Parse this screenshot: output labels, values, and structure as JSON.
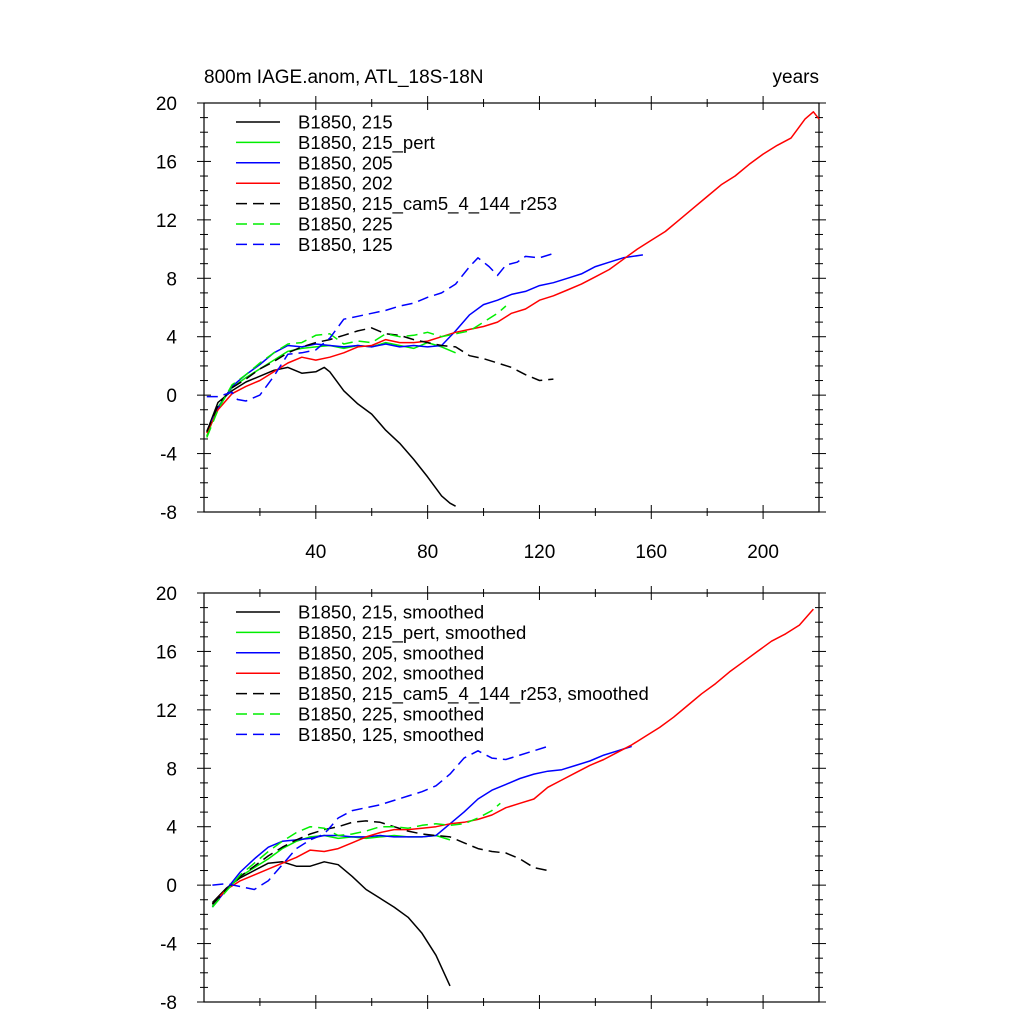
{
  "chart_data": [
    {
      "type": "line",
      "title": "800m IAGE.anom, ATL_18S-18N",
      "right_title": "years",
      "xlabel": "",
      "ylabel": "",
      "xlim": [
        0,
        220
      ],
      "ylim": [
        -8,
        20
      ],
      "xticks": [
        40,
        80,
        120,
        160,
        200
      ],
      "xtick_labels": [
        "40",
        "80",
        "120",
        "160",
        "200"
      ],
      "yticks": [
        -8,
        -4,
        0,
        4,
        8,
        12,
        16,
        20
      ],
      "ytick_labels": [
        "-8",
        "-4",
        "0",
        "4",
        "8",
        "12",
        "16",
        "20"
      ],
      "legend_position": "top-left",
      "series": [
        {
          "name": "B1850, 215",
          "color": "#000000",
          "dash": "solid",
          "x": [
            1,
            5,
            10,
            15,
            20,
            25,
            30,
            35,
            40,
            43,
            45,
            50,
            55,
            60,
            65,
            70,
            75,
            80,
            85,
            88,
            90
          ],
          "y": [
            -2.5,
            -0.5,
            0.3,
            0.9,
            1.3,
            1.7,
            1.9,
            1.5,
            1.6,
            1.9,
            1.6,
            0.3,
            -0.6,
            -1.3,
            -2.4,
            -3.3,
            -4.4,
            -5.6,
            -6.9,
            -7.4,
            -7.6
          ]
        },
        {
          "name": "B1850, 215_pert",
          "color": "#00ee00",
          "dash": "solid",
          "x": [
            1,
            5,
            10,
            15,
            20,
            25,
            30,
            35,
            40,
            45,
            50,
            55,
            60,
            65,
            70,
            75,
            80,
            85,
            90
          ],
          "y": [
            -2.8,
            -0.8,
            0.5,
            1.2,
            1.8,
            2.4,
            3.0,
            3.2,
            3.3,
            3.4,
            3.2,
            3.4,
            3.3,
            3.6,
            3.4,
            3.2,
            3.6,
            3.3,
            2.9
          ]
        },
        {
          "name": "B1850, 205",
          "color": "#0000ff",
          "dash": "solid",
          "x": [
            1,
            5,
            10,
            15,
            20,
            25,
            30,
            35,
            40,
            45,
            50,
            55,
            60,
            65,
            70,
            75,
            80,
            85,
            90,
            95,
            100,
            105,
            110,
            115,
            120,
            125,
            130,
            135,
            140,
            145,
            150,
            157
          ],
          "y": [
            -2.5,
            -0.9,
            0.6,
            1.4,
            2.1,
            2.9,
            3.4,
            3.3,
            3.5,
            3.4,
            3.3,
            3.4,
            3.3,
            3.5,
            3.3,
            3.4,
            3.3,
            3.4,
            4.4,
            5.5,
            6.2,
            6.5,
            6.9,
            7.1,
            7.5,
            7.7,
            8.0,
            8.3,
            8.8,
            9.1,
            9.4,
            9.6
          ]
        },
        {
          "name": "B1850, 202",
          "color": "#ff0000",
          "dash": "solid",
          "x": [
            1,
            5,
            10,
            15,
            20,
            25,
            30,
            35,
            40,
            45,
            50,
            55,
            60,
            65,
            70,
            75,
            80,
            85,
            90,
            95,
            100,
            105,
            110,
            115,
            120,
            125,
            130,
            135,
            140,
            145,
            150,
            155,
            160,
            165,
            170,
            175,
            180,
            185,
            190,
            195,
            200,
            205,
            210,
            215,
            218,
            220
          ],
          "y": [
            -2.6,
            -1.0,
            0.1,
            0.6,
            1.0,
            1.6,
            2.2,
            2.6,
            2.4,
            2.6,
            2.9,
            3.3,
            3.4,
            3.8,
            3.6,
            3.6,
            3.7,
            4.0,
            4.3,
            4.5,
            4.7,
            5.0,
            5.6,
            5.9,
            6.5,
            6.8,
            7.2,
            7.6,
            8.1,
            8.6,
            9.3,
            10.0,
            10.6,
            11.2,
            12.0,
            12.8,
            13.6,
            14.4,
            15.0,
            15.8,
            16.5,
            17.1,
            17.6,
            18.9,
            19.4,
            18.9
          ]
        },
        {
          "name": "B1850, 215_cam5_4_144_r253",
          "color": "#000000",
          "dash": "dashed",
          "x": [
            1,
            5,
            10,
            15,
            20,
            25,
            30,
            35,
            40,
            45,
            50,
            55,
            60,
            65,
            70,
            75,
            80,
            85,
            90,
            95,
            100,
            105,
            110,
            115,
            120,
            125
          ],
          "y": [
            -2.5,
            -0.7,
            0.5,
            1.1,
            1.8,
            2.3,
            2.9,
            3.3,
            3.6,
            3.8,
            4.1,
            4.4,
            4.6,
            4.2,
            4.1,
            3.8,
            3.6,
            3.4,
            3.3,
            2.7,
            2.5,
            2.2,
            1.9,
            1.4,
            1.0,
            1.1
          ]
        },
        {
          "name": "B1850, 225",
          "color": "#00ee00",
          "dash": "dashed",
          "x": [
            1,
            5,
            10,
            15,
            20,
            25,
            30,
            35,
            40,
            45,
            50,
            55,
            60,
            65,
            70,
            75,
            80,
            85,
            90,
            95,
            100,
            105,
            108
          ],
          "y": [
            -2.9,
            -1.0,
            0.7,
            1.4,
            2.2,
            2.9,
            3.5,
            3.6,
            4.1,
            4.2,
            3.5,
            3.7,
            3.6,
            4.2,
            4.0,
            4.1,
            4.3,
            4.0,
            4.2,
            4.4,
            5.0,
            5.6,
            6.1
          ]
        },
        {
          "name": "B1850, 125",
          "color": "#0000ff",
          "dash": "dashed",
          "x": [
            1,
            5,
            10,
            12,
            15,
            20,
            25,
            30,
            35,
            40,
            45,
            50,
            55,
            60,
            65,
            70,
            75,
            80,
            85,
            90,
            95,
            98,
            102,
            105,
            108,
            112,
            115,
            120,
            125
          ],
          "y": [
            -0.1,
            -0.1,
            0.2,
            -0.3,
            -0.4,
            0.0,
            1.3,
            2.8,
            2.9,
            3.1,
            3.9,
            5.2,
            5.4,
            5.6,
            5.8,
            6.1,
            6.3,
            6.7,
            7.0,
            7.6,
            8.8,
            9.4,
            8.8,
            8.2,
            8.9,
            9.1,
            9.5,
            9.4,
            9.7
          ]
        }
      ]
    },
    {
      "type": "line",
      "title": "",
      "xlabel": "",
      "ylabel": "",
      "xlim": [
        0,
        220
      ],
      "ylim": [
        -8,
        20
      ],
      "xticks": [
        40,
        80,
        120,
        160,
        200
      ],
      "xtick_labels": [
        "",
        "",
        "",
        "",
        ""
      ],
      "yticks": [
        -8,
        -4,
        0,
        4,
        8,
        12,
        16,
        20
      ],
      "ytick_labels": [
        "-8",
        "-4",
        "0",
        "4",
        "8",
        "12",
        "16",
        "20"
      ],
      "legend_position": "top-left",
      "series": [
        {
          "name": "B1850, 215, smoothed",
          "color": "#000000",
          "dash": "solid",
          "x": [
            3,
            8,
            13,
            18,
            23,
            28,
            33,
            38,
            43,
            48,
            53,
            58,
            63,
            68,
            73,
            78,
            83,
            88
          ],
          "y": [
            -1.2,
            -0.2,
            0.5,
            1.0,
            1.5,
            1.6,
            1.3,
            1.3,
            1.6,
            1.4,
            0.6,
            -0.3,
            -0.9,
            -1.5,
            -2.2,
            -3.3,
            -4.8,
            -6.9
          ]
        },
        {
          "name": "B1850, 215_pert, smoothed",
          "color": "#00ee00",
          "dash": "solid",
          "x": [
            3,
            8,
            13,
            18,
            23,
            28,
            33,
            38,
            43,
            48,
            53,
            58,
            63,
            68,
            73,
            78,
            83,
            88
          ],
          "y": [
            -1.4,
            -0.3,
            0.6,
            1.2,
            1.8,
            2.5,
            3.0,
            3.3,
            3.4,
            3.2,
            3.3,
            3.2,
            3.3,
            3.4,
            3.3,
            3.3,
            3.4,
            3.1
          ]
        },
        {
          "name": "B1850, 205, smoothed",
          "color": "#0000ff",
          "dash": "solid",
          "x": [
            3,
            8,
            13,
            18,
            23,
            28,
            33,
            38,
            43,
            48,
            53,
            58,
            63,
            68,
            73,
            78,
            83,
            88,
            93,
            98,
            103,
            108,
            113,
            118,
            123,
            128,
            133,
            138,
            143,
            148,
            153
          ],
          "y": [
            -1.5,
            -0.3,
            0.9,
            1.8,
            2.6,
            3.0,
            3.1,
            3.2,
            3.4,
            3.4,
            3.3,
            3.3,
            3.4,
            3.3,
            3.3,
            3.3,
            3.4,
            4.2,
            5.0,
            5.9,
            6.5,
            6.9,
            7.3,
            7.6,
            7.8,
            7.9,
            8.2,
            8.5,
            8.9,
            9.2,
            9.5
          ]
        },
        {
          "name": "B1850, 202, smoothed",
          "color": "#ff0000",
          "dash": "solid",
          "x": [
            3,
            8,
            13,
            18,
            23,
            28,
            33,
            38,
            43,
            48,
            53,
            58,
            63,
            68,
            73,
            78,
            83,
            88,
            93,
            98,
            103,
            108,
            113,
            118,
            123,
            128,
            133,
            138,
            143,
            148,
            153,
            158,
            163,
            168,
            173,
            178,
            183,
            188,
            193,
            198,
            203,
            208,
            213,
            218
          ],
          "y": [
            -1.3,
            -0.3,
            0.3,
            0.7,
            1.1,
            1.5,
            1.9,
            2.4,
            2.3,
            2.5,
            2.9,
            3.3,
            3.6,
            3.8,
            3.8,
            3.9,
            4.0,
            4.2,
            4.3,
            4.5,
            4.8,
            5.3,
            5.6,
            5.9,
            6.7,
            7.2,
            7.7,
            8.2,
            8.6,
            9.1,
            9.6,
            10.2,
            10.8,
            11.5,
            12.3,
            13.1,
            13.8,
            14.6,
            15.3,
            16.0,
            16.7,
            17.2,
            17.8,
            18.9
          ]
        },
        {
          "name": "B1850, 215_cam5_4_144_r253, smoothed",
          "color": "#000000",
          "dash": "dashed",
          "x": [
            3,
            8,
            13,
            18,
            23,
            28,
            33,
            38,
            43,
            48,
            53,
            58,
            63,
            68,
            73,
            78,
            83,
            88,
            93,
            98,
            103,
            108,
            113,
            118,
            123
          ],
          "y": [
            -1.3,
            -0.3,
            0.6,
            1.3,
            2.0,
            2.6,
            3.1,
            3.5,
            3.8,
            4.0,
            4.3,
            4.4,
            4.3,
            4.0,
            3.7,
            3.5,
            3.4,
            3.3,
            2.9,
            2.5,
            2.3,
            2.2,
            1.8,
            1.2,
            1.0
          ]
        },
        {
          "name": "B1850, 225, smoothed",
          "color": "#00ee00",
          "dash": "dashed",
          "x": [
            3,
            8,
            13,
            18,
            23,
            28,
            33,
            38,
            43,
            48,
            53,
            58,
            63,
            68,
            73,
            78,
            83,
            88,
            93,
            98,
            103,
            106
          ],
          "y": [
            -1.5,
            -0.4,
            0.7,
            1.5,
            2.3,
            3.0,
            3.6,
            4.0,
            3.9,
            3.4,
            3.5,
            3.7,
            4.0,
            4.0,
            3.9,
            4.1,
            4.2,
            4.1,
            4.2,
            4.6,
            5.1,
            5.6
          ]
        },
        {
          "name": "B1850, 125, smoothed",
          "color": "#0000ff",
          "dash": "dashed",
          "x": [
            3,
            8,
            13,
            18,
            23,
            28,
            33,
            38,
            43,
            48,
            53,
            58,
            63,
            68,
            73,
            78,
            83,
            88,
            93,
            98,
            103,
            108,
            113,
            118,
            123
          ],
          "y": [
            0.0,
            0.1,
            -0.1,
            -0.3,
            0.3,
            1.4,
            2.5,
            3.1,
            3.5,
            4.6,
            5.1,
            5.3,
            5.5,
            5.8,
            6.1,
            6.4,
            6.8,
            7.6,
            8.7,
            9.2,
            8.7,
            8.6,
            8.9,
            9.2,
            9.5
          ]
        }
      ]
    }
  ]
}
